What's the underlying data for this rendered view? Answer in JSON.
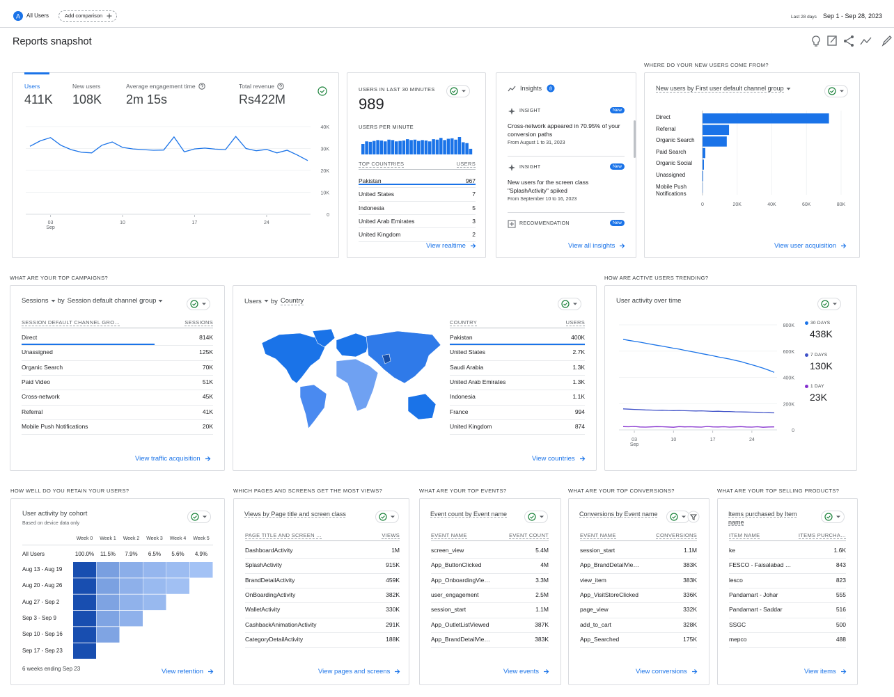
{
  "header": {
    "avatar": "A",
    "segment": "All Users",
    "add_comparison": "Add comparison",
    "date_hint": "Last 28 days",
    "date_range": "Sep 1 - Sep 28, 2023"
  },
  "title": "Reports snapshot",
  "overview": {
    "metrics": [
      {
        "label": "Users",
        "value": "411K"
      },
      {
        "label": "New users",
        "value": "108K"
      },
      {
        "label": "Average engagement time",
        "value": "2m 15s"
      },
      {
        "label": "Total revenue",
        "value": "Rs422M"
      }
    ],
    "chart_data": {
      "type": "line",
      "color": "#1a73e8",
      "x": [
        1,
        2,
        3,
        4,
        5,
        6,
        7,
        8,
        9,
        10,
        11,
        12,
        13,
        14,
        15,
        16,
        17,
        18,
        19,
        20,
        21,
        22,
        23,
        24,
        25,
        26,
        27,
        28
      ],
      "values": [
        31000,
        33500,
        35000,
        31500,
        29500,
        28300,
        28000,
        31500,
        33000,
        30500,
        29800,
        29500,
        29200,
        29300,
        35300,
        28500,
        29800,
        30200,
        29700,
        29500,
        35500,
        30000,
        29000,
        29600,
        28000,
        29200,
        27000,
        24500
      ],
      "xlim": [
        1,
        28
      ],
      "xticks": [
        {
          "value": 3,
          "label": "03"
        },
        10,
        17,
        24
      ],
      "month_label": "Sep",
      "ylim": [
        0,
        40000
      ],
      "yticks": [
        0,
        {
          "value": 10000,
          "label": "10K"
        },
        {
          "value": 20000,
          "label": "20K"
        },
        {
          "value": 30000,
          "label": "30K"
        },
        {
          "value": 40000,
          "label": "40K"
        }
      ]
    }
  },
  "realtime": {
    "title": "USERS IN LAST 30 MINUTES",
    "value": 989,
    "subtitle": "USERS PER MINUTE",
    "chart_data": {
      "type": "bar",
      "color": "#1a73e8",
      "values": [
        24,
        30,
        29,
        31,
        33,
        32,
        30,
        34,
        33,
        30,
        31,
        32,
        35,
        33,
        34,
        31,
        33,
        32,
        30,
        35,
        34,
        38,
        33,
        36,
        37,
        34,
        40,
        28,
        26,
        13
      ]
    },
    "table": {
      "columns": [
        "TOP COUNTRIES",
        "USERS"
      ],
      "rows": [
        [
          "Pakistan",
          967
        ],
        [
          "United States",
          7
        ],
        [
          "Indonesia",
          5
        ],
        [
          "United Arab Emirates",
          3
        ],
        [
          "United Kingdom",
          2
        ]
      ]
    },
    "link": "View realtime"
  },
  "insights": {
    "title": "Insights",
    "count": 8,
    "items": [
      {
        "kind": "INSIGHT",
        "badge": "New",
        "text": "Cross-network appeared in 70.95% of your conversion paths",
        "date": "From August 1 to 31, 2023"
      },
      {
        "kind": "INSIGHT",
        "badge": "New",
        "text": "New users for the screen class \"SplashActivity\" spiked",
        "date": "From September 10 to 16, 2023"
      },
      {
        "kind": "RECOMMENDATION",
        "badge": "New"
      }
    ],
    "link": "View all insights"
  },
  "new_users": {
    "heading": "WHERE DO YOUR NEW USERS COME FROM?",
    "title": "New users by First user default channel group",
    "chart_data": {
      "type": "hbar",
      "color": "#1a73e8",
      "categories": [
        "Direct",
        "Referral",
        "Organic Search",
        "Paid Search",
        "Organic Social",
        "Unassigned",
        "Mobile Push Notifications"
      ],
      "values": [
        73000,
        15300,
        14000,
        1600,
        800,
        400,
        150
      ],
      "xlim": [
        0,
        80000
      ],
      "xticks": [
        0,
        {
          "value": 20000,
          "label": "20K"
        },
        {
          "value": 40000,
          "label": "40K"
        },
        {
          "value": 60000,
          "label": "60K"
        },
        {
          "value": 80000,
          "label": "80K"
        }
      ]
    },
    "link": "View user acquisition"
  },
  "campaigns": {
    "heading": "WHAT ARE YOUR TOP CAMPAIGNS?",
    "title_metric": "Sessions",
    "title_by": "by",
    "title_dimension": "Session default channel group",
    "table": {
      "columns": [
        "SESSION DEFAULT CHANNEL GRO…",
        "SESSIONS"
      ],
      "rows": [
        [
          "Direct",
          "814K"
        ],
        [
          "Unassigned",
          "125K"
        ],
        [
          "Organic Search",
          "70K"
        ],
        [
          "Paid Video",
          "51K"
        ],
        [
          "Cross-network",
          "45K"
        ],
        [
          "Referral",
          "41K"
        ],
        [
          "Mobile Push Notifications",
          "20K"
        ]
      ]
    },
    "link": "View traffic acquisition"
  },
  "countries": {
    "title_metric": "Users",
    "title_by": "by",
    "title_dimension": "Country",
    "table": {
      "columns": [
        "COUNTRY",
        "USERS"
      ],
      "rows": [
        [
          "Pakistan",
          "400K"
        ],
        [
          "United States",
          "2.7K"
        ],
        [
          "Saudi Arabia",
          "1.3K"
        ],
        [
          "United Arab Emirates",
          "1.3K"
        ],
        [
          "Indonesia",
          "1.1K"
        ],
        [
          "France",
          994
        ],
        [
          "United Kingdom",
          874
        ]
      ]
    },
    "link": "View countries"
  },
  "active": {
    "heading": "HOW ARE ACTIVE USERS TRENDING?",
    "title": "User activity over time",
    "chart_data": {
      "type": "line",
      "x": [
        1,
        2,
        3,
        4,
        5,
        6,
        7,
        8,
        9,
        10,
        11,
        12,
        13,
        14,
        15,
        16,
        17,
        18,
        19,
        20,
        21,
        22,
        23,
        24,
        25,
        26,
        27,
        28
      ],
      "xlim": [
        1,
        28
      ],
      "xticks": [
        {
          "value": 3,
          "label": "03"
        },
        10,
        17,
        24
      ],
      "month_label": "Sep",
      "ylim": [
        0,
        800000
      ],
      "yticks": [
        0,
        {
          "value": 200000,
          "label": "200K"
        },
        {
          "value": 400000,
          "label": "400K"
        },
        {
          "value": 600000,
          "label": "600K"
        },
        {
          "value": 800000,
          "label": "800K"
        }
      ],
      "series": [
        {
          "name": "30 DAYS",
          "color": "#1a73e8",
          "total_label": "438K",
          "values": [
            690000,
            682000,
            675000,
            668000,
            660000,
            652000,
            645000,
            638000,
            630000,
            622000,
            615000,
            606000,
            598000,
            590000,
            581000,
            573000,
            565000,
            556000,
            548000,
            540000,
            530000,
            520000,
            508000,
            496000,
            483000,
            470000,
            455000,
            438000
          ]
        },
        {
          "name": "7 DAYS",
          "color": "#3f51c8",
          "total_label": "130K",
          "values": [
            160000,
            158000,
            156000,
            154000,
            152000,
            151000,
            149000,
            150000,
            148000,
            147000,
            148000,
            146000,
            145000,
            144000,
            145000,
            143000,
            141000,
            142000,
            140000,
            140000,
            138000,
            137000,
            136000,
            135000,
            134000,
            132000,
            131000,
            130000
          ]
        },
        {
          "name": "1 DAY",
          "color": "#8430ce",
          "total_label": "23K",
          "values": [
            25000,
            24000,
            26000,
            22000,
            21000,
            23000,
            25000,
            24000,
            22000,
            20000,
            25000,
            23000,
            24000,
            22000,
            21000,
            26000,
            23000,
            22000,
            24000,
            21000,
            23000,
            25000,
            22000,
            21000,
            24000,
            20000,
            22000,
            23000
          ]
        }
      ]
    }
  },
  "retention": {
    "heading": "HOW WELL DO YOU RETAIN YOUR USERS?",
    "title": "User activity by cohort",
    "subtitle": "Based on device data only",
    "columns": [
      "Week 0",
      "Week 1",
      "Week 2",
      "Week 3",
      "Week 4",
      "Week 5"
    ],
    "all_users": {
      "label": "All Users",
      "values": [
        "100.0%",
        "11.5%",
        "7.9%",
        "6.5%",
        "5.6%",
        "4.9%"
      ]
    },
    "cohorts": [
      {
        "label": "Aug 13 - Aug 19",
        "values": [
          100,
          12.5,
          8.5,
          6.8,
          5.9,
          5.0
        ]
      },
      {
        "label": "Aug 20 - Aug 26",
        "values": [
          100,
          11.8,
          7.9,
          6.2,
          5.3
        ]
      },
      {
        "label": "Aug 27 - Sep 2",
        "values": [
          100,
          11.2,
          7.6,
          6.4
        ]
      },
      {
        "label": "Sep 3 - Sep 9",
        "values": [
          100,
          11.0,
          7.8
        ]
      },
      {
        "label": "Sep 10 - Sep 16",
        "values": [
          100,
          10.9
        ]
      },
      {
        "label": "Sep 17 - Sep 23",
        "values": [
          100
        ]
      }
    ],
    "footer": "6 weeks ending Sep 23",
    "link": "View retention"
  },
  "pages": {
    "heading": "WHICH PAGES AND SCREENS GET THE MOST VIEWS?",
    "title": "Views by Page title and screen class",
    "table": {
      "columns": [
        "PAGE TITLE AND SCREEN …",
        "VIEWS"
      ],
      "rows": [
        [
          "DashboardActivity",
          "1M"
        ],
        [
          "SplashActivity",
          "915K"
        ],
        [
          "BrandDetailActivity",
          "459K"
        ],
        [
          "OnBoardingActivity",
          "382K"
        ],
        [
          "WalletActivity",
          "330K"
        ],
        [
          "CashbackAnimationActivity",
          "291K"
        ],
        [
          "CategoryDetailActivity",
          "188K"
        ]
      ]
    },
    "link": "View pages and screens"
  },
  "events": {
    "heading": "WHAT ARE YOUR TOP EVENTS?",
    "title": "Event count by Event name",
    "table": {
      "columns": [
        "EVENT NAME",
        "EVENT COUNT"
      ],
      "rows": [
        [
          "screen_view",
          "5.4M"
        ],
        [
          "App_ButtonClicked",
          "4M"
        ],
        [
          "App_OnboardingVie…",
          "3.3M"
        ],
        [
          "user_engagement",
          "2.5M"
        ],
        [
          "session_start",
          "1.1M"
        ],
        [
          "App_OutletListViewed",
          "387K"
        ],
        [
          "App_BrandDetailVie…",
          "383K"
        ]
      ]
    },
    "link": "View events"
  },
  "conversions": {
    "heading": "WHAT ARE YOUR TOP CONVERSIONS?",
    "title": "Conversions by Event name",
    "table": {
      "columns": [
        "EVENT NAME",
        "CONVERSIONS"
      ],
      "rows": [
        [
          "session_start",
          "1.1M"
        ],
        [
          "App_BrandDetailVie…",
          "383K"
        ],
        [
          "view_item",
          "383K"
        ],
        [
          "App_VisitStoreClicked",
          "336K"
        ],
        [
          "page_view",
          "332K"
        ],
        [
          "add_to_cart",
          "328K"
        ],
        [
          "App_Searched",
          "175K"
        ]
      ]
    },
    "link": "View conversions"
  },
  "products": {
    "heading": "WHAT ARE YOUR TOP SELLING PRODUCTS?",
    "title": "Items purchased by Item name",
    "table": {
      "columns": [
        "ITEM NAME",
        "ITEMS PURCHA…"
      ],
      "rows": [
        [
          "ke",
          "1.6K"
        ],
        [
          "FESCO - Faisalabad …",
          843
        ],
        [
          "lesco",
          823
        ],
        [
          "Pandamart - Johar",
          555
        ],
        [
          "Pandamart - Saddar",
          516
        ],
        [
          "SSGC",
          500
        ],
        [
          "mepco",
          488
        ]
      ]
    },
    "link": "View items"
  }
}
